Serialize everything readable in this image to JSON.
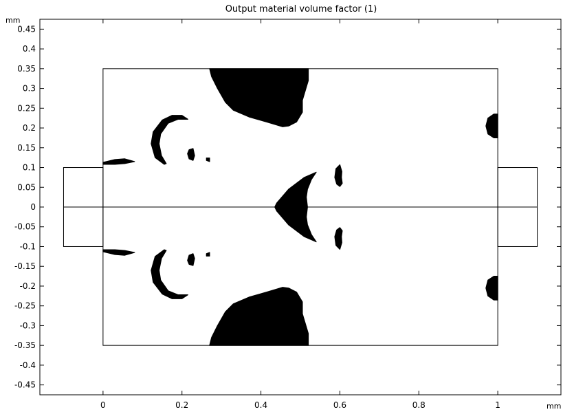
{
  "chart_data": {
    "type": "heatmap",
    "title": "Output material volume factor (1)",
    "xunit": "mm",
    "yunit": "mm",
    "xlim": [
      -0.16,
      1.16
    ],
    "ylim": [
      -0.475,
      0.475
    ],
    "xticks": [
      {
        "value": 0,
        "label": "0"
      },
      {
        "value": 0.2,
        "label": "0.2"
      },
      {
        "value": 0.4,
        "label": "0.4"
      },
      {
        "value": 0.6,
        "label": "0.6"
      },
      {
        "value": 0.8,
        "label": "0.8"
      },
      {
        "value": 1,
        "label": "1"
      }
    ],
    "yticks": [
      {
        "value": 0.45,
        "label": "0.45"
      },
      {
        "value": 0.4,
        "label": "0.4"
      },
      {
        "value": 0.35,
        "label": "0.35"
      },
      {
        "value": 0.3,
        "label": "0.3"
      },
      {
        "value": 0.25,
        "label": "0.25"
      },
      {
        "value": 0.2,
        "label": "0.2"
      },
      {
        "value": 0.15,
        "label": "0.15"
      },
      {
        "value": 0.1,
        "label": "0.1"
      },
      {
        "value": 0.05,
        "label": "0.05"
      },
      {
        "value": 0,
        "label": "0"
      },
      {
        "value": -0.05,
        "label": "-0.05"
      },
      {
        "value": -0.1,
        "label": "-0.1"
      },
      {
        "value": -0.15,
        "label": "-0.15"
      },
      {
        "value": -0.2,
        "label": "-0.2"
      },
      {
        "value": -0.25,
        "label": "-0.25"
      },
      {
        "value": -0.3,
        "label": "-0.3"
      },
      {
        "value": -0.35,
        "label": "-0.35"
      },
      {
        "value": -0.4,
        "label": "-0.4"
      },
      {
        "value": -0.45,
        "label": "-0.45"
      }
    ],
    "value_range": [
      0,
      1
    ],
    "colors": {
      "solid": "#000000",
      "void": "#ffffff",
      "outline": "#000000"
    },
    "geometry": {
      "design_domain": {
        "x": [
          0,
          1
        ],
        "y": [
          -0.35,
          0.35
        ]
      },
      "left_port": {
        "x": [
          -0.1,
          0
        ],
        "y": [
          -0.1,
          0.1
        ]
      },
      "right_port": {
        "x": [
          1,
          1.1
        ],
        "y": [
          -0.1,
          0.1
        ]
      },
      "symmetry_line": {
        "x": [
          -0.1,
          1.1
        ],
        "y": 0
      }
    },
    "material_regions_upper_half": [
      {
        "name": "top-blob",
        "points": [
          [
            0.27,
            0.35
          ],
          [
            0.52,
            0.35
          ],
          [
            0.52,
            0.32
          ],
          [
            0.505,
            0.27
          ],
          [
            0.505,
            0.24
          ],
          [
            0.49,
            0.215
          ],
          [
            0.47,
            0.205
          ],
          [
            0.455,
            0.203
          ],
          [
            0.415,
            0.215
          ],
          [
            0.37,
            0.228
          ],
          [
            0.33,
            0.245
          ],
          [
            0.31,
            0.265
          ],
          [
            0.29,
            0.3
          ],
          [
            0.275,
            0.33
          ]
        ]
      },
      {
        "name": "crescent-left",
        "points": [
          [
            0.215,
            0.222
          ],
          [
            0.2,
            0.232
          ],
          [
            0.175,
            0.232
          ],
          [
            0.15,
            0.22
          ],
          [
            0.127,
            0.19
          ],
          [
            0.122,
            0.16
          ],
          [
            0.132,
            0.125
          ],
          [
            0.155,
            0.108
          ],
          [
            0.16,
            0.11
          ],
          [
            0.148,
            0.13
          ],
          [
            0.142,
            0.16
          ],
          [
            0.146,
            0.185
          ],
          [
            0.165,
            0.212
          ],
          [
            0.19,
            0.222
          ]
        ]
      },
      {
        "name": "small-dot-1",
        "points": [
          [
            0.218,
            0.145
          ],
          [
            0.228,
            0.148
          ],
          [
            0.232,
            0.13
          ],
          [
            0.228,
            0.118
          ],
          [
            0.218,
            0.122
          ],
          [
            0.214,
            0.135
          ]
        ]
      },
      {
        "name": "small-dot-2",
        "points": [
          [
            0.262,
            0.124
          ],
          [
            0.27,
            0.124
          ],
          [
            0.27,
            0.115
          ],
          [
            0.262,
            0.118
          ]
        ]
      },
      {
        "name": "left-wisp",
        "points": [
          [
            0.0,
            0.113
          ],
          [
            0.03,
            0.12
          ],
          [
            0.055,
            0.122
          ],
          [
            0.08,
            0.115
          ],
          [
            0.055,
            0.11
          ],
          [
            0.03,
            0.108
          ],
          [
            0.0,
            0.108
          ]
        ]
      },
      {
        "name": "center-triangle",
        "points": [
          [
            0.435,
            0.0
          ],
          [
            0.44,
            0.01
          ],
          [
            0.47,
            0.045
          ],
          [
            0.51,
            0.075
          ],
          [
            0.54,
            0.088
          ],
          [
            0.528,
            0.07
          ],
          [
            0.518,
            0.045
          ],
          [
            0.515,
            0.025
          ],
          [
            0.518,
            0.0
          ]
        ]
      },
      {
        "name": "small-crescent-right",
        "points": [
          [
            0.6,
            0.107
          ],
          [
            0.59,
            0.097
          ],
          [
            0.587,
            0.075
          ],
          [
            0.592,
            0.058
          ],
          [
            0.6,
            0.052
          ],
          [
            0.606,
            0.06
          ],
          [
            0.604,
            0.075
          ],
          [
            0.605,
            0.09
          ]
        ]
      },
      {
        "name": "right-edge-blob",
        "points": [
          [
            1.0,
            0.235
          ],
          [
            0.99,
            0.235
          ],
          [
            0.975,
            0.225
          ],
          [
            0.97,
            0.205
          ],
          [
            0.975,
            0.185
          ],
          [
            0.99,
            0.175
          ],
          [
            1.0,
            0.175
          ]
        ]
      }
    ]
  }
}
